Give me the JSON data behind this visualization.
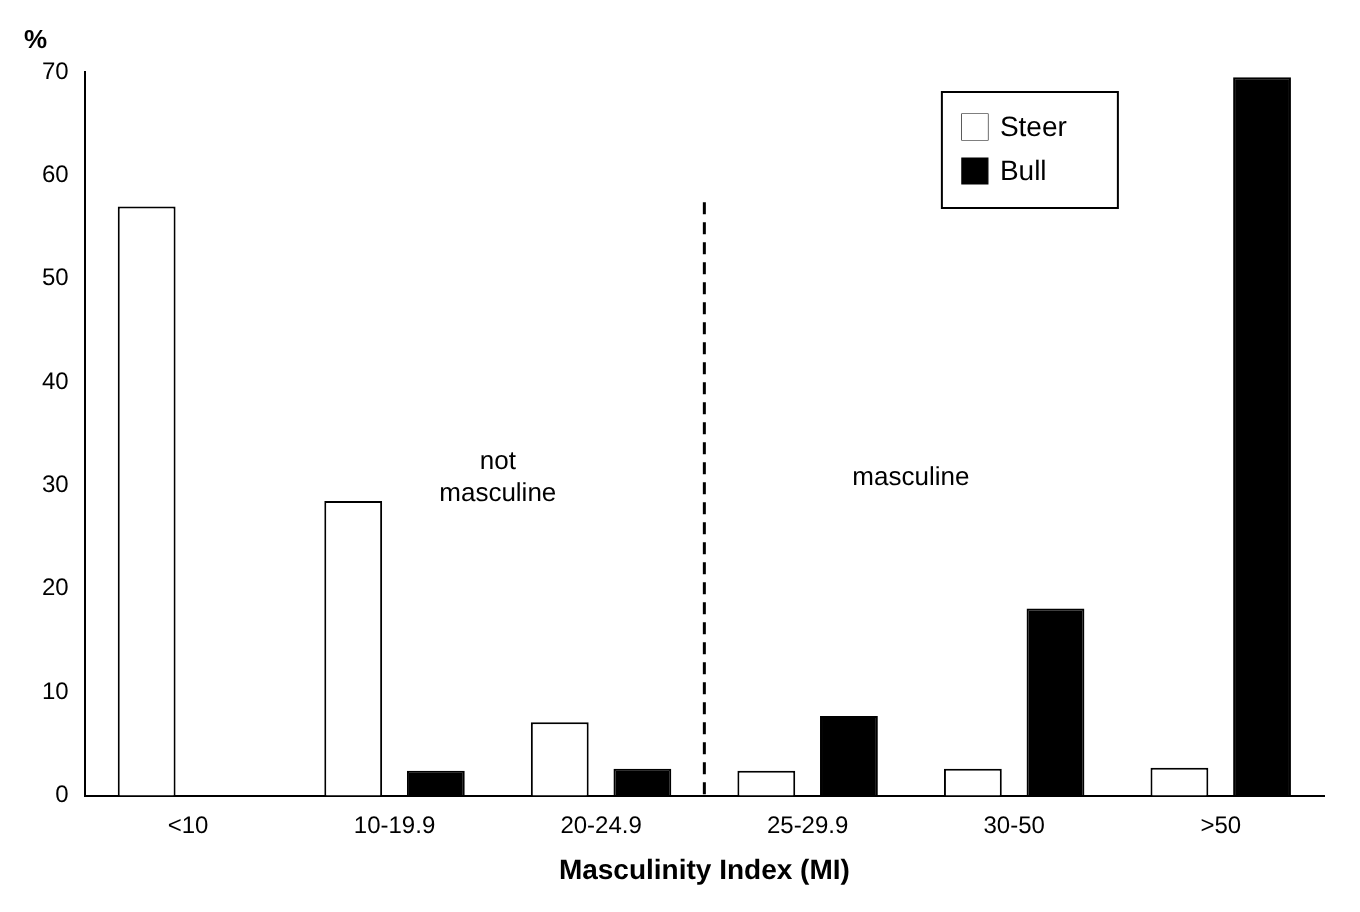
{
  "chart_data": {
    "type": "bar",
    "xlabel": "Masculinity Index (MI)",
    "ylabel": "%",
    "categories": [
      "<10",
      "10-19.9",
      "20-24.9",
      "25-29.9",
      "30-50",
      ">50"
    ],
    "series": [
      {
        "name": "Steer",
        "color": "#ffffff",
        "values": [
          57,
          28.5,
          7.1,
          2.4,
          2.6,
          2.7
        ]
      },
      {
        "name": "Bull",
        "color": "#000000",
        "values": [
          0,
          2.4,
          2.6,
          7.7,
          18.1,
          69.5
        ]
      }
    ],
    "ylim": [
      0,
      70
    ],
    "yticks": [
      0,
      10,
      20,
      30,
      40,
      50,
      60,
      70
    ],
    "grid": false,
    "legend": "top right",
    "annotations": [
      "not\nmasculine",
      "masculine"
    ]
  }
}
